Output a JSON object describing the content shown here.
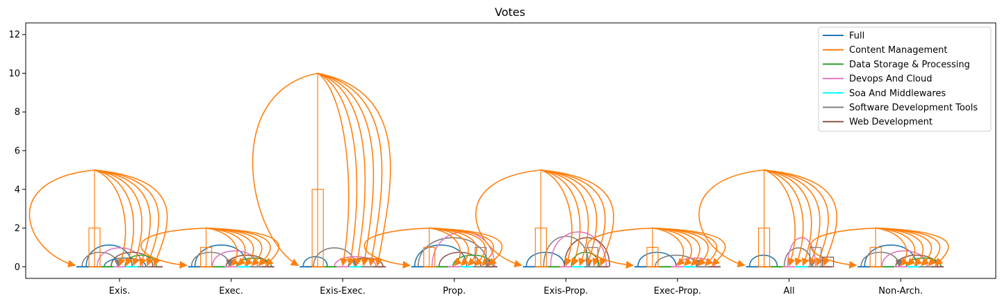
{
  "chart_data": {
    "type": "bar",
    "title": "Votes",
    "xlabel": "",
    "ylabel": "",
    "ylim": [
      -0.6,
      12.6
    ],
    "yticks": [
      0,
      2,
      4,
      6,
      8,
      10,
      12
    ],
    "grid": false,
    "legend_position": "top-right",
    "categories": [
      "Exis.",
      "Exec.",
      "Exis-Exec.",
      "Prop.",
      "Exis-Prop.",
      "Exec-Prop.",
      "All",
      "Non-Arch."
    ],
    "series": [
      {
        "name": "Full",
        "color": "#1f77b4"
      },
      {
        "name": "Content Management",
        "color": "#ff7f0e"
      },
      {
        "name": "Data Storage & Processing",
        "color": "#2ca02c"
      },
      {
        "name": "Devops And Cloud",
        "color": "#e377c2"
      },
      {
        "name": "Soa And Middlewares",
        "color": "#00ffff"
      },
      {
        "name": "Software Development Tools",
        "color": "#7f7f7f"
      },
      {
        "name": "Web Development",
        "color": "#8c564b"
      }
    ],
    "bars": [
      {
        "category": "Exis.",
        "series": "Content Management",
        "value": 2
      },
      {
        "category": "Exec.",
        "series": "Content Management",
        "value": 1
      },
      {
        "category": "Exis-Exec.",
        "series": "Content Management",
        "value": 4
      },
      {
        "category": "Prop.",
        "series": "Content Management",
        "value": 1
      },
      {
        "category": "Prop.",
        "series": "Software Development Tools",
        "value": 1
      },
      {
        "category": "Exis-Prop.",
        "series": "Content Management",
        "value": 2
      },
      {
        "category": "Exis-Prop.",
        "series": "Software Development Tools",
        "value": 1
      },
      {
        "category": "Exec-Prop.",
        "series": "Content Management",
        "value": 1
      },
      {
        "category": "All",
        "series": "Content Management",
        "value": 2
      },
      {
        "category": "All",
        "series": "Software Development Tools",
        "value": 1
      },
      {
        "category": "All",
        "series": "Web Development",
        "value": 0.5
      },
      {
        "category": "Non-Arch.",
        "series": "Content Management",
        "value": 1
      }
    ],
    "stems": [
      {
        "category": "Exis.",
        "peak": 5
      },
      {
        "category": "Exec.",
        "peak": 2
      },
      {
        "category": "Exis-Exec.",
        "peak": 10
      },
      {
        "category": "Prop.",
        "peak": 2
      },
      {
        "category": "Exis-Prop.",
        "peak": 5
      },
      {
        "category": "Exec-Prop.",
        "peak": 2
      },
      {
        "category": "All",
        "peak": 5
      },
      {
        "category": "Non-Arch.",
        "peak": 2
      }
    ]
  }
}
